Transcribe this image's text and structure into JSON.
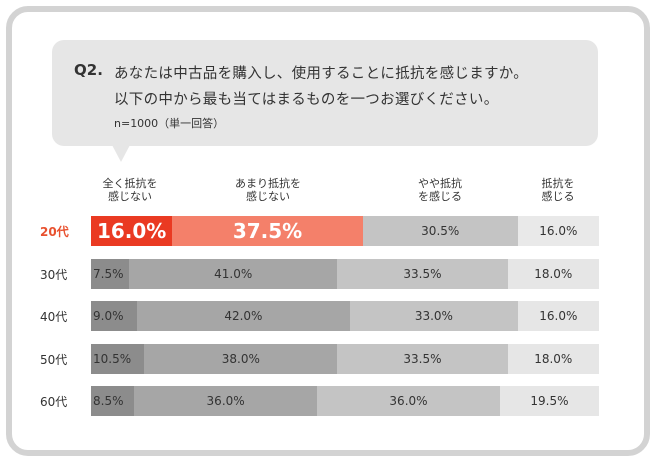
{
  "question": {
    "number": "Q2.",
    "line1": "あなたは中古品を購入し、使用することに抵抗を感じますか。",
    "line2": "以下の中から最も当てはまるものを一つお選びください。",
    "note": "n=1000（単一回答）"
  },
  "colors": {
    "highlight": [
      "#ea3a22",
      "#f4806a",
      "#c4c4c4",
      "#e9e9e9"
    ],
    "default": [
      "#8c8c8c",
      "#a6a6a6",
      "#c4c4c4",
      "#e6e6e6"
    ],
    "highlight_label": "#e8512f"
  },
  "chart_data": {
    "type": "bar",
    "orientation": "horizontal",
    "stacked": "100%",
    "categories": [
      "20代",
      "30代",
      "40代",
      "50代",
      "60代"
    ],
    "series": [
      {
        "name": "全く抵抗を\n感じない",
        "values": [
          16.0,
          7.5,
          9.0,
          10.5,
          8.5
        ]
      },
      {
        "name": "あまり抵抗を\n感じない",
        "values": [
          37.5,
          41.0,
          42.0,
          38.0,
          36.0
        ]
      },
      {
        "name": "やや抵抗\nを感じる",
        "values": [
          30.5,
          33.5,
          33.0,
          33.5,
          36.0
        ]
      },
      {
        "name": "抵抗を\n感じる",
        "values": [
          16.0,
          18.0,
          16.0,
          18.0,
          19.5
        ]
      }
    ],
    "value_labels": [
      [
        "16.0%",
        "37.5%",
        "30.5%",
        "16.0%"
      ],
      [
        "7.5%",
        "41.0%",
        "33.5%",
        "18.0%"
      ],
      [
        "9.0%",
        "42.0%",
        "33.0%",
        "16.0%"
      ],
      [
        "10.5%",
        "38.0%",
        "33.5%",
        "18.0%"
      ],
      [
        "8.5%",
        "36.0%",
        "36.0%",
        "19.5%"
      ]
    ],
    "highlighted_category": "20代",
    "xlim": [
      0,
      100
    ]
  }
}
